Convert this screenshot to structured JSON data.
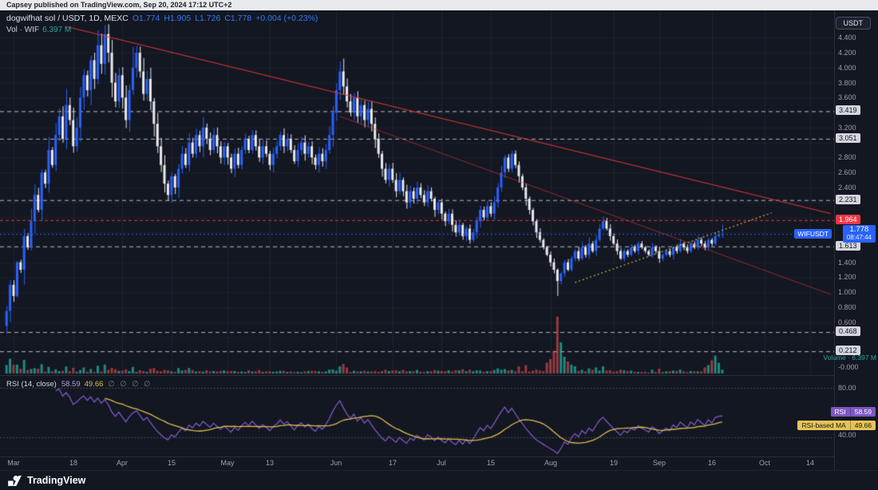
{
  "attribution": {
    "text": "Capsey published on TradingView.com, Sep 20, 2024 17:12 UTC+2"
  },
  "legend": {
    "symbol": "dogwifhat sol / USDT, 1D, MEXC",
    "ohlc_tokens": [
      "O1.774",
      "H1.905",
      "L1.726",
      "C1.778",
      "+0.004 (+0.23%)"
    ],
    "vol_label": "Vol · WIF",
    "vol_value": "6.397 M"
  },
  "axis_button": "USDT",
  "price_scale": {
    "plain_ticks": [
      {
        "v": 4.4,
        "t": "4.400"
      },
      {
        "v": 4.2,
        "t": "4.200"
      },
      {
        "v": 4.0,
        "t": "4.000"
      },
      {
        "v": 3.8,
        "t": "3.800"
      },
      {
        "v": 3.6,
        "t": "3.600"
      },
      {
        "v": 3.2,
        "t": "3.200"
      },
      {
        "v": 2.8,
        "t": "2.800"
      },
      {
        "v": 2.6,
        "t": "2.600"
      },
      {
        "v": 2.4,
        "t": "2.400"
      },
      {
        "v": 1.4,
        "t": "1.400"
      },
      {
        "v": 1.2,
        "t": "1.200"
      },
      {
        "v": 1.0,
        "t": "1.000"
      },
      {
        "v": 0.8,
        "t": "0.800"
      },
      {
        "v": 0.6,
        "t": "0.600"
      },
      {
        "v": 0.0,
        "t": "-0.000"
      }
    ],
    "level_labels": [
      {
        "v": 3.419,
        "t": "3.419"
      },
      {
        "v": 3.051,
        "t": "3.051"
      },
      {
        "v": 2.231,
        "t": "2.231"
      },
      {
        "v": 1.613,
        "t": "1.613"
      },
      {
        "v": 0.468,
        "t": "0.468"
      },
      {
        "v": 0.212,
        "t": "0.212"
      }
    ],
    "red_label": {
      "v": 1.964,
      "t": "1.964"
    },
    "current": {
      "symbol": "WIFUSDT",
      "price": "1.778",
      "countdown": "08:47:44"
    },
    "volume_label": "Volume · 6.397 M"
  },
  "rsi": {
    "title": "RSI (14, close)",
    "value": "58.59",
    "ma_value": "49.66",
    "placeholders": "∅ ∅ ∅ ∅",
    "scale_ticks": [
      "80.00",
      "40.00"
    ],
    "badge_rsi": {
      "name": "RSI",
      "value": "58.59"
    },
    "badge_ma": {
      "name": "RSI-based MA",
      "value": "49.66"
    }
  },
  "time_axis": {
    "labels": [
      {
        "t": "Mar",
        "d": 2
      },
      {
        "t": "18",
        "d": 19
      },
      {
        "t": "Apr",
        "d": 33
      },
      {
        "t": "15",
        "d": 47
      },
      {
        "t": "May",
        "d": 63
      },
      {
        "t": "13",
        "d": 75
      },
      {
        "t": "Jun",
        "d": 94
      },
      {
        "t": "17",
        "d": 110
      },
      {
        "t": "Jul",
        "d": 124
      },
      {
        "t": "15",
        "d": 138
      },
      {
        "t": "Aug",
        "d": 155
      },
      {
        "t": "19",
        "d": 173
      },
      {
        "t": "Sep",
        "d": 186
      },
      {
        "t": "16",
        "d": 201
      },
      {
        "t": "Oct",
        "d": 216
      },
      {
        "t": "14",
        "d": 229
      }
    ]
  },
  "footer": {
    "brand": "TradingView"
  },
  "colors": {
    "background": "#131722",
    "up": "#2962ff",
    "down": "#e9eaec",
    "accent_blue": "#2962ff",
    "red": "#f23645",
    "teal": "#26a69a",
    "vol_up": "rgba(38,166,154,0.8)",
    "vol_down": "rgba(239,83,80,0.6)",
    "rsi_purple": "#7e57c2",
    "rsi_ma_yellow": "#e0bd4e",
    "trend_red": "#e53935",
    "trend_yellow": "#b8a33c",
    "grid": "rgba(240,243,250,0.05)",
    "level_white": "rgba(255,255,255,0.7)"
  },
  "chart_data": {
    "type": "candlestick",
    "title": "dogwifhat sol / USDT, 1D, MEXC",
    "symbol": "WIFUSDT",
    "timeframe": "1D",
    "ohlc_today": {
      "o": 1.774,
      "h": 1.905,
      "l": 1.726,
      "c": 1.778,
      "change": 0.004,
      "change_pct": 0.23
    },
    "volume_today_m": 6.397,
    "price_axis_range": [
      0.0,
      4.77
    ],
    "total_days": 235,
    "first_open": 0.55,
    "closes": [
      0.75,
      1.1,
      0.95,
      1.4,
      1.3,
      1.75,
      1.6,
      1.95,
      2.3,
      2.1,
      2.6,
      2.45,
      2.9,
      2.7,
      3.1,
      3.35,
      3.05,
      3.5,
      3.3,
      2.95,
      3.2,
      3.6,
      3.9,
      3.7,
      4.1,
      3.85,
      4.3,
      4.05,
      4.45,
      4.2,
      3.8,
      3.55,
      3.9,
      3.6,
      3.3,
      3.7,
      4.0,
      4.2,
      3.95,
      3.65,
      3.85,
      3.55,
      3.25,
      2.95,
      2.7,
      2.45,
      2.3,
      2.55,
      2.4,
      2.65,
      2.85,
      2.7,
      3.0,
      2.85,
      3.1,
      2.95,
      3.2,
      3.05,
      2.9,
      3.1,
      2.95,
      2.8,
      2.95,
      2.8,
      2.65,
      2.85,
      2.7,
      2.9,
      3.05,
      2.9,
      3.1,
      2.95,
      2.8,
      2.95,
      2.85,
      2.7,
      2.85,
      2.95,
      3.1,
      2.95,
      3.05,
      2.9,
      2.75,
      2.9,
      3.0,
      2.85,
      2.95,
      2.8,
      2.7,
      2.85,
      2.75,
      2.9,
      3.1,
      3.4,
      3.7,
      3.95,
      3.75,
      3.55,
      3.4,
      3.6,
      3.35,
      3.5,
      3.3,
      3.45,
      3.25,
      3.05,
      2.85,
      2.65,
      2.5,
      2.65,
      2.5,
      2.35,
      2.5,
      2.35,
      2.2,
      2.35,
      2.25,
      2.4,
      2.3,
      2.2,
      2.35,
      2.25,
      2.1,
      2.2,
      2.05,
      1.95,
      2.05,
      1.9,
      1.8,
      1.9,
      1.75,
      1.85,
      1.7,
      1.8,
      1.95,
      2.1,
      2.0,
      2.15,
      2.05,
      2.2,
      2.4,
      2.6,
      2.8,
      2.65,
      2.85,
      2.7,
      2.55,
      2.4,
      2.25,
      2.1,
      1.95,
      1.8,
      1.7,
      1.6,
      1.5,
      1.4,
      1.3,
      1.15,
      1.25,
      1.4,
      1.3,
      1.45,
      1.55,
      1.45,
      1.6,
      1.5,
      1.65,
      1.55,
      1.7,
      1.85,
      1.95,
      1.85,
      1.75,
      1.65,
      1.55,
      1.45,
      1.55,
      1.5,
      1.6,
      1.55,
      1.65,
      1.6,
      1.55,
      1.5,
      1.6,
      1.55,
      1.45,
      1.5,
      1.55,
      1.5,
      1.6,
      1.55,
      1.65,
      1.6,
      1.55,
      1.65,
      1.6,
      1.7,
      1.65,
      1.6,
      1.7,
      1.65,
      1.75,
      1.774,
      1.778
    ],
    "high_overrides": {
      "26": 4.5,
      "28": 4.57,
      "36": 4.28,
      "96": 4.12,
      "204": 1.905
    },
    "low_overrides": {
      "0": 0.45,
      "157": 0.95,
      "204": 1.726
    },
    "volume_overrides_m": {
      "8": 9,
      "12": 11,
      "22": 10,
      "26": 13,
      "28": 15,
      "36": 11,
      "42": 9,
      "95": 12,
      "96": 16,
      "97": 10,
      "146": 12,
      "148": 14,
      "154": 18,
      "155": 24,
      "156": 38,
      "157": 95,
      "158": 52,
      "159": 28,
      "160": 20,
      "161": 15,
      "162": 12,
      "168": 10,
      "170": 12,
      "186": 8,
      "199": 10,
      "200": 14,
      "201": 22,
      "202": 30,
      "203": 18,
      "204": 6.4
    },
    "levels": {
      "white_dashed": [
        3.419,
        3.051,
        2.231,
        1.613,
        0.468,
        0.212
      ],
      "red_dashed": 1.964,
      "current_price": 1.778
    },
    "trendlines": [
      {
        "style": "solid",
        "color": "#e53935",
        "alpha": 0.95,
        "width": 1.2,
        "from": {
          "day": 17,
          "price": 4.55
        },
        "to": {
          "day": 235,
          "price": 2.05
        }
      },
      {
        "style": "solid",
        "color": "#e53935",
        "alpha": 0.6,
        "width": 1,
        "from": {
          "day": 95,
          "price": 3.35
        },
        "to": {
          "day": 235,
          "price": 0.97
        }
      },
      {
        "style": "dotted",
        "color": "#b8a33c",
        "alpha": 1,
        "width": 1.4,
        "from": {
          "day": 162,
          "price": 1.13
        },
        "to": {
          "day": 218,
          "price": 2.06
        }
      }
    ],
    "rsi": {
      "period": 14,
      "current": 58.59,
      "ma_current": 49.66,
      "scale_guides": [
        80,
        40
      ]
    }
  }
}
